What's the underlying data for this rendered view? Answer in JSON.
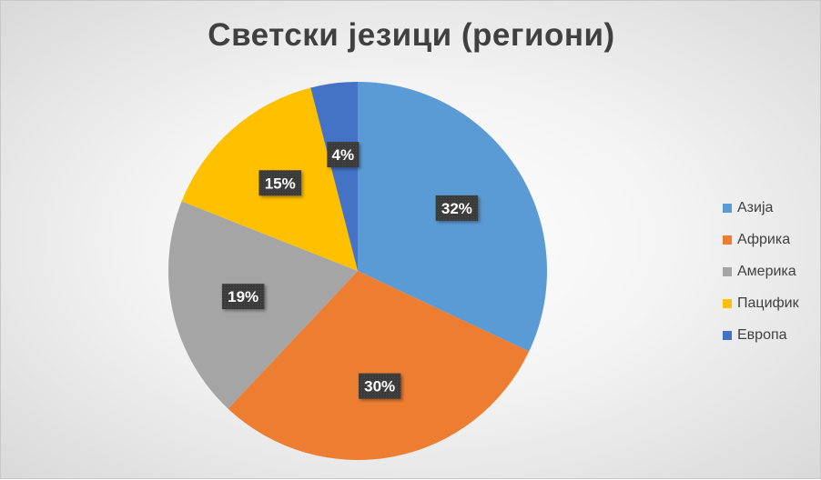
{
  "chart_data": {
    "type": "pie",
    "title": "Светски језици (региони)",
    "categories": [
      "Азија",
      "Африка",
      "Америка",
      "Пацифик",
      "Европа"
    ],
    "values": [
      32,
      30,
      19,
      15,
      4
    ],
    "data_labels": [
      "32%",
      "30%",
      "19%",
      "15%",
      "4%"
    ],
    "colors": [
      "#5b9bd5",
      "#ed7d31",
      "#a5a5a5",
      "#ffc000",
      "#4472c4"
    ],
    "legend_position": "right"
  }
}
